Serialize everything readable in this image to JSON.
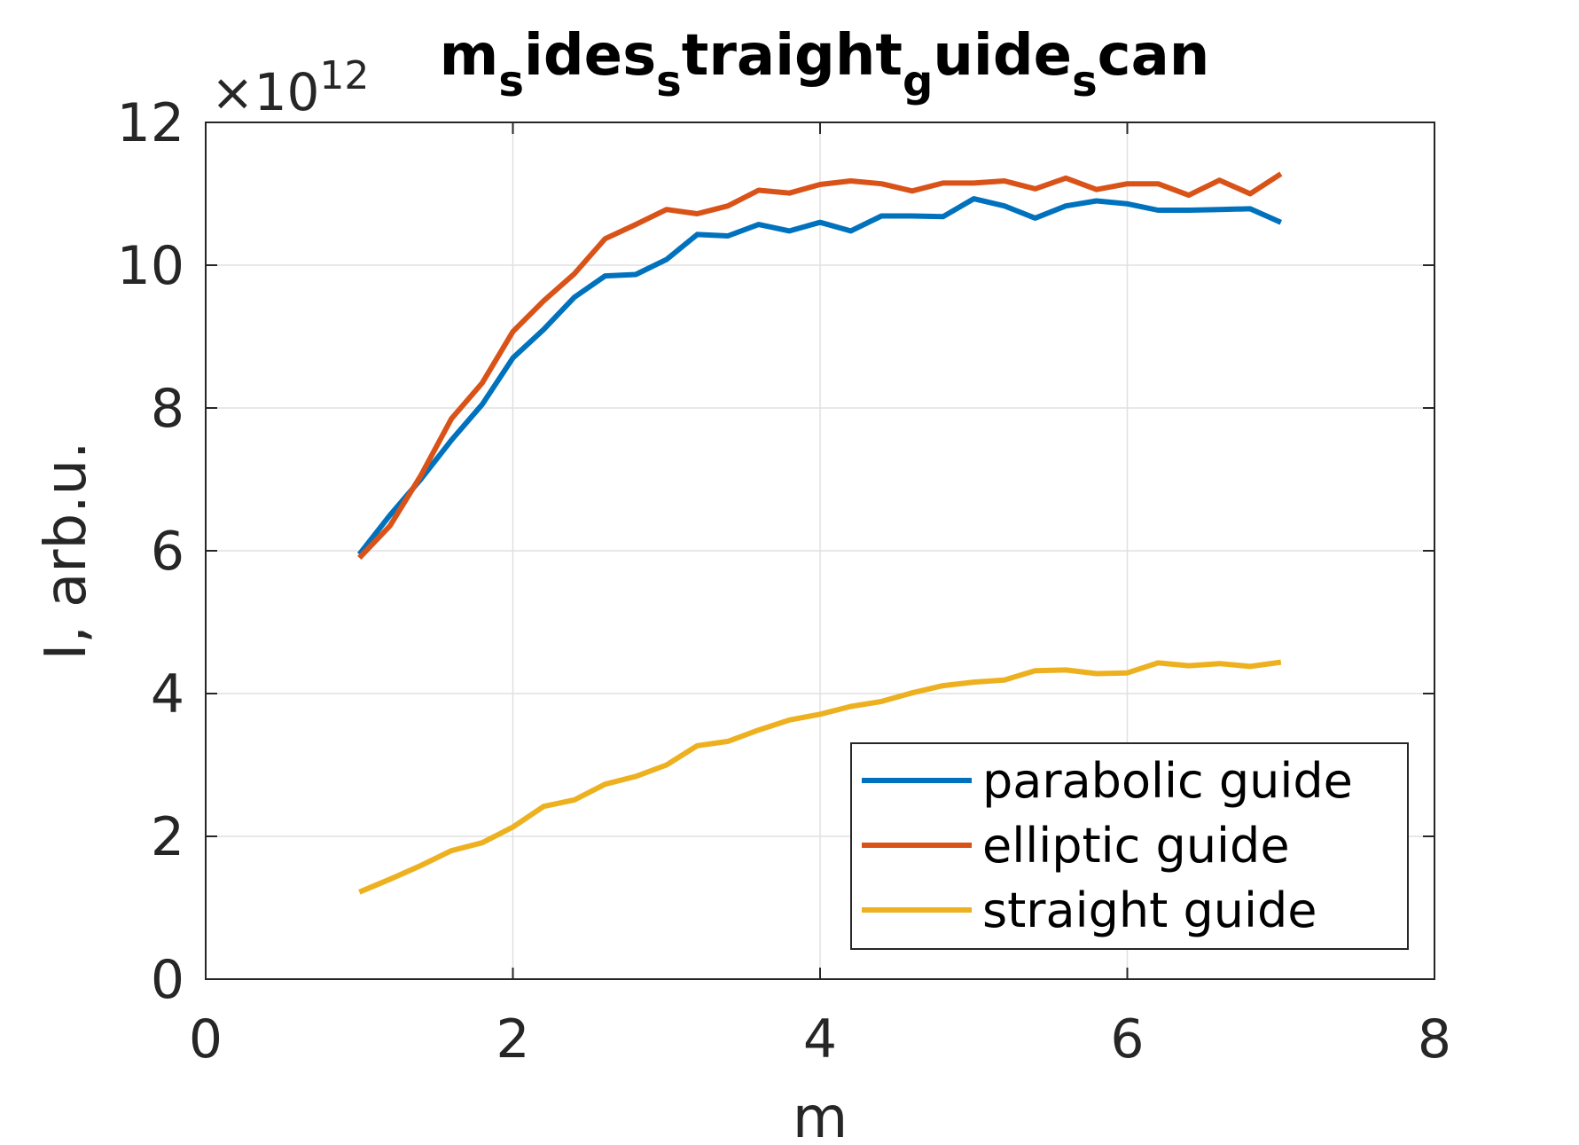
{
  "chart_data": {
    "type": "line",
    "title_parts": [
      {
        "text": "m",
        "sub": false
      },
      {
        "text": "s",
        "sub": true
      },
      {
        "text": "ides",
        "sub": false
      },
      {
        "text": "s",
        "sub": true
      },
      {
        "text": "traight",
        "sub": false
      },
      {
        "text": "g",
        "sub": true
      },
      {
        "text": "uide",
        "sub": false
      },
      {
        "text": "s",
        "sub": true
      },
      {
        "text": "can",
        "sub": false
      }
    ],
    "xlabel": "m",
    "ylabel": "I, arb.u.",
    "y_exponent_base": "×10",
    "y_exponent_power": "12",
    "xlim": [
      0,
      8
    ],
    "ylim": [
      0,
      12
    ],
    "xticks": [
      "0",
      "2",
      "4",
      "6",
      "8"
    ],
    "yticks": [
      "0",
      "2",
      "4",
      "6",
      "8",
      "10",
      "12"
    ],
    "grid": true,
    "legend_position": "bottom-right",
    "x": [
      1.0,
      1.2,
      1.4,
      1.6,
      1.8,
      2.0,
      2.2,
      2.4,
      2.6,
      2.8,
      3.0,
      3.2,
      3.4,
      3.6,
      3.8,
      4.0,
      4.2,
      4.4,
      4.6,
      4.8,
      5.0,
      5.2,
      5.4,
      5.6,
      5.8,
      6.0,
      6.2,
      6.4,
      6.6,
      6.8,
      7.0
    ],
    "series": [
      {
        "name": "parabolic guide",
        "color": "#0072BD",
        "values": [
          5.95,
          6.5,
          7.0,
          7.55,
          8.05,
          8.7,
          9.1,
          9.55,
          9.85,
          9.87,
          10.08,
          10.43,
          10.41,
          10.57,
          10.48,
          10.6,
          10.48,
          10.69,
          10.69,
          10.68,
          10.93,
          10.83,
          10.66,
          10.83,
          10.9,
          10.86,
          10.77,
          10.77,
          10.78,
          10.79,
          10.6
        ]
      },
      {
        "name": "elliptic guide",
        "color": "#D95319",
        "values": [
          5.9,
          6.35,
          7.05,
          7.85,
          8.35,
          9.07,
          9.5,
          9.88,
          10.37,
          10.57,
          10.78,
          10.72,
          10.83,
          11.05,
          11.01,
          11.13,
          11.18,
          11.14,
          11.04,
          11.15,
          11.15,
          11.18,
          11.07,
          11.22,
          11.06,
          11.14,
          11.14,
          10.98,
          11.19,
          11.0,
          11.28
        ]
      },
      {
        "name": "straight guide",
        "color": "#EDB120",
        "values": [
          1.22,
          1.4,
          1.59,
          1.8,
          1.91,
          2.13,
          2.42,
          2.51,
          2.73,
          2.84,
          3.0,
          3.27,
          3.33,
          3.49,
          3.63,
          3.71,
          3.82,
          3.89,
          4.01,
          4.11,
          4.16,
          4.19,
          4.32,
          4.33,
          4.28,
          4.29,
          4.43,
          4.39,
          4.42,
          4.38,
          4.44
        ]
      }
    ]
  }
}
